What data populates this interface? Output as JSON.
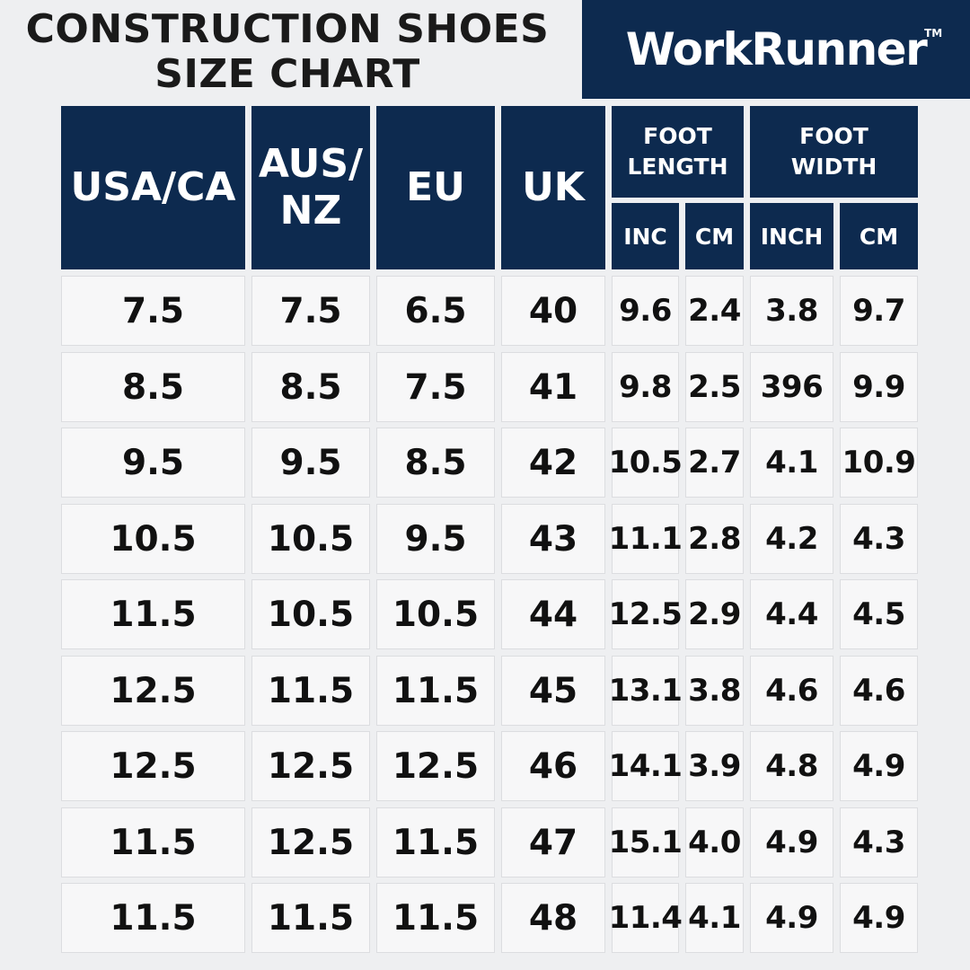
{
  "title": {
    "line1": "CONSTRUCTION SHOES",
    "line2": "SIZE CHART"
  },
  "logo": {
    "text": "WorkRunner",
    "tm": "TM"
  },
  "headers": {
    "usa_ca": "USA/CA",
    "aus_nz_line1": "AUS/",
    "aus_nz_line2": "NZ",
    "eu": "EU",
    "uk": "UK",
    "foot_length_line1": "FOOT",
    "foot_length_line2": "LENGTH",
    "foot_width_line1": "FOOT",
    "foot_width_line2": "WIDTH",
    "inc": "INC",
    "cm_length": "CM",
    "inch": "INCH",
    "cm_width": "CM"
  },
  "rows": [
    [
      "7.5",
      "7.5",
      "6.5",
      "40",
      "9.6",
      "2.4",
      "3.8",
      "9.7"
    ],
    [
      "8.5",
      "8.5",
      "7.5",
      "41",
      "9.8",
      "2.5",
      "396",
      "9.9"
    ],
    [
      "9.5",
      "9.5",
      "8.5",
      "42",
      "10.5",
      "2.7",
      "4.1",
      "10.9"
    ],
    [
      "10.5",
      "10.5",
      "9.5",
      "43",
      "11.1",
      "2.8",
      "4.2",
      "4.3"
    ],
    [
      "11.5",
      "10.5",
      "10.5",
      "44",
      "12.5",
      "2.9",
      "4.4",
      "4.5"
    ],
    [
      "12.5",
      "11.5",
      "11.5",
      "45",
      "13.1",
      "3.8",
      "4.6",
      "4.6"
    ],
    [
      "12.5",
      "12.5",
      "12.5",
      "46",
      "14.1",
      "3.9",
      "4.8",
      "4.9"
    ],
    [
      "11.5",
      "12.5",
      "11.5",
      "47",
      "15.1",
      "4.0",
      "4.9",
      "4.3"
    ],
    [
      "11.5",
      "11.5",
      "11.5",
      "48",
      "11.4",
      "4.1",
      "4.9",
      "4.9"
    ]
  ],
  "colors": {
    "header_navy": "#0d2a4f",
    "cell_bg": "#f7f7f8",
    "page_bg": "#eeeff1"
  }
}
